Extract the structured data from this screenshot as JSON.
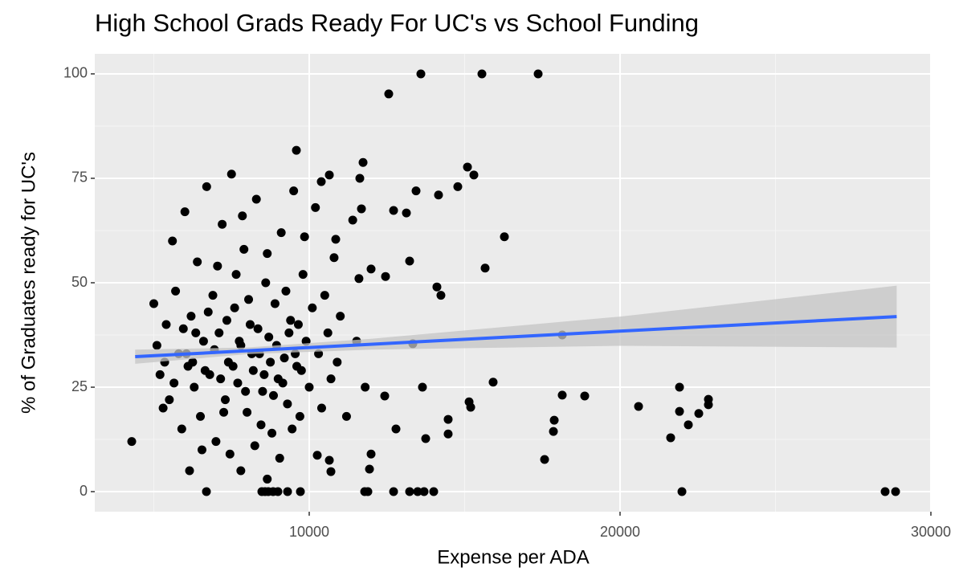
{
  "chart_data": {
    "type": "scatter",
    "title": "High School Grads Ready For UC's vs School Funding",
    "x_label": "Expense per ADA",
    "y_label": "% of Graduates ready for UC's",
    "xlim": [
      3101,
      30026
    ],
    "ylim": [
      -4.8,
      104.8
    ],
    "xticks": [
      10000,
      20000,
      30000
    ],
    "yticks": [
      0,
      25,
      50,
      75,
      100
    ],
    "xminor": [
      5000,
      15000,
      25000
    ],
    "yminor": [
      12.5,
      37.5,
      62.5,
      87.5
    ],
    "grid": true,
    "color": "#000000",
    "x": [
      13592,
      15556,
      17365,
      12558,
      9587,
      11732,
      15091,
      15297,
      16279,
      15659,
      18140,
      15917,
      18140,
      18863,
      20595,
      21913,
      22843,
      22843,
      22533,
      22197,
      17882,
      17856,
      17572,
      21628,
      21913,
      21991,
      28528,
      28864,
      4290,
      6693,
      8476,
      8579,
      8683,
      8838,
      8993,
      9303,
      9716,
      11784,
      11887,
      12714,
      13230,
      13489,
      13695,
      14005,
      13437,
      14160,
      14780,
      14108,
      14237,
      13643,
      13333,
      14470,
      14470,
      13747,
      13127,
      12714,
      13230,
      12455,
      11990,
      11525,
      12429,
      12791,
      11990,
      11939,
      10647,
      10698,
      10259,
      15143,
      15195,
      10853,
      10647,
      10388,
      11628,
      11680,
      5000,
      5100,
      5200,
      5300,
      5400,
      5500,
      5600,
      5700,
      5800,
      5900,
      6000,
      6100,
      6200,
      6300,
      6400,
      6500,
      6600,
      6700,
      6800,
      6900,
      7000,
      7100,
      7200,
      7300,
      7400,
      7500,
      7600,
      7700,
      7800,
      7900,
      8000,
      8100,
      8200,
      8300,
      8400,
      8500,
      8600,
      8700,
      8800,
      8900,
      9000,
      9100,
      9200,
      9300,
      9400,
      9500,
      9600,
      9700,
      9800,
      9900,
      10000,
      10100,
      10200,
      10300,
      10400,
      10500,
      10600,
      10700,
      10800,
      10900,
      11000,
      11200,
      11400,
      11600,
      11800,
      6050,
      6350,
      6650,
      6950,
      7150,
      7350,
      7550,
      7750,
      7950,
      8150,
      8350,
      8550,
      8750,
      8950,
      9150,
      9350,
      9550,
      9750,
      6250,
      6750,
      7250,
      7650,
      8050,
      8450,
      8850,
      9250,
      9650,
      5350,
      5650,
      5950,
      7050,
      7450,
      7850,
      8250,
      8650,
      9050,
      9450,
      9850,
      6150,
      6550,
      7800,
      8650
    ],
    "y": [
      100,
      100,
      100,
      95.2,
      81.7,
      78.8,
      77.7,
      75.8,
      61,
      53.5,
      37.5,
      26.2,
      23.1,
      22.9,
      20.4,
      25,
      22.1,
      20.8,
      18.7,
      16,
      17.1,
      14.4,
      7.7,
      12.9,
      19.2,
      0,
      0,
      0,
      12,
      0,
      0,
      0,
      0,
      0,
      0,
      0,
      0,
      0,
      0,
      0,
      0,
      0,
      0,
      0,
      72,
      71,
      73,
      49,
      47,
      25,
      35.4,
      13.8,
      17.3,
      12.7,
      66.7,
      67.3,
      55.2,
      51.5,
      53.3,
      36,
      22.9,
      15,
      9,
      5.4,
      7.5,
      4.8,
      8.7,
      21.5,
      20.2,
      60.4,
      75.8,
      74.2,
      75,
      67.7,
      45,
      35,
      28,
      20,
      40,
      22,
      60,
      48,
      33,
      15,
      67,
      30,
      42,
      25,
      55,
      18,
      36,
      73,
      28,
      47,
      12,
      38,
      64,
      22,
      31,
      76,
      44,
      26,
      35,
      58,
      19,
      40,
      29,
      70,
      33,
      24,
      50,
      37,
      14,
      45,
      27,
      62,
      32,
      21,
      41,
      72,
      30,
      18,
      52,
      36,
      25,
      44,
      68,
      33,
      20,
      47,
      38,
      27,
      56,
      31,
      42,
      18,
      65,
      51,
      25,
      33,
      38,
      29,
      34,
      27,
      41,
      30,
      36,
      24,
      33,
      39,
      28,
      31,
      35,
      26,
      38,
      33,
      29,
      31,
      43,
      19,
      52,
      46,
      16,
      23,
      48,
      40,
      31,
      26,
      39,
      54,
      9,
      66,
      11,
      57,
      8,
      15,
      61,
      5,
      10,
      5,
      3
    ],
    "fit": {
      "color": "#3366ff",
      "x": [
        4400,
        28900
      ],
      "y": [
        32.3,
        41.9
      ]
    },
    "band": {
      "color": "#c4c4c4",
      "x": [
        4400,
        8000,
        12000,
        20000,
        28900
      ],
      "lower": [
        30.6,
        32.9,
        34.0,
        34.9,
        34.5
      ],
      "upper": [
        34.0,
        34.5,
        36.6,
        41.9,
        49.3
      ]
    }
  }
}
